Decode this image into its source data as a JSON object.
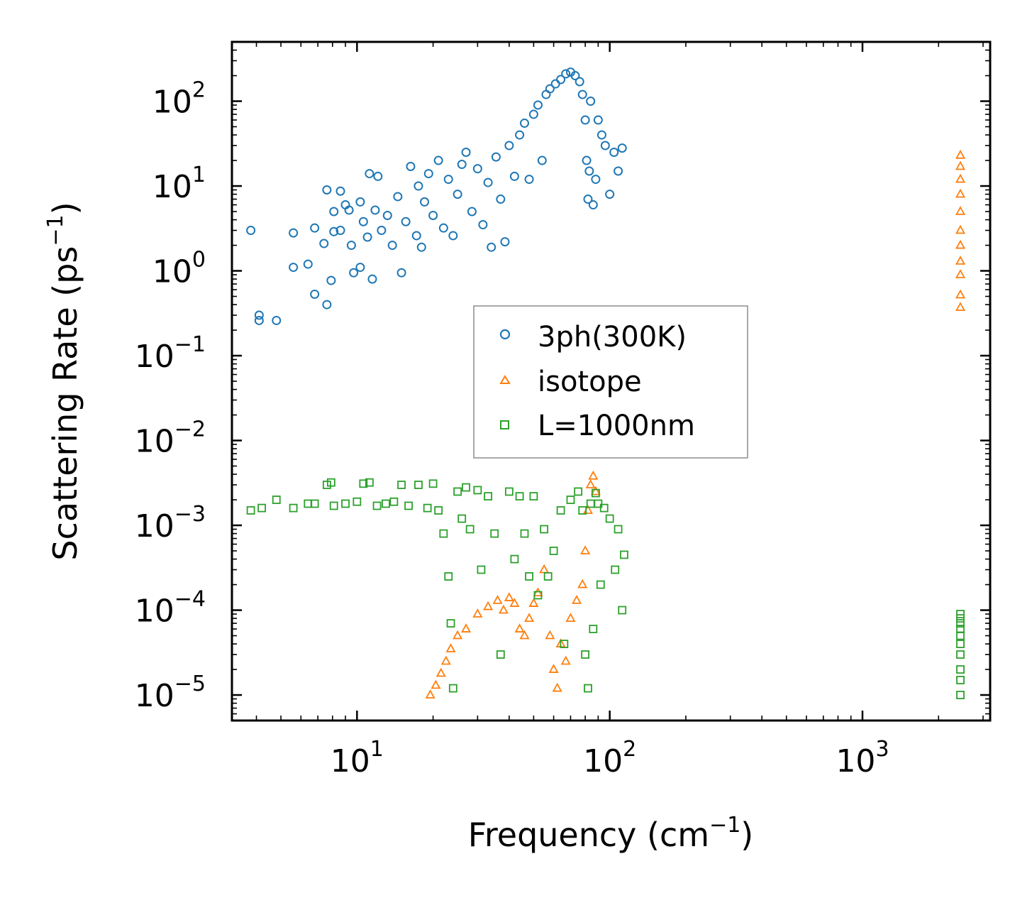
{
  "chart_data": {
    "type": "scatter",
    "title": "",
    "xlabel": "Frequency (cm",
    "xlabel_sup": "−1",
    "xlabel_end": ")",
    "ylabel": "Scattering Rate (ps",
    "ylabel_sup": "−1",
    "ylabel_end": ")",
    "xscale": "log",
    "yscale": "log",
    "xlim": [
      3.2,
      3200
    ],
    "ylim": [
      5e-06,
      500
    ],
    "xticks": [
      {
        "value": 10,
        "base": "10",
        "exp": "1"
      },
      {
        "value": 100,
        "base": "10",
        "exp": "2"
      },
      {
        "value": 1000,
        "base": "10",
        "exp": "3"
      }
    ],
    "yticks": [
      {
        "value": 1e-05,
        "base": "10",
        "exp": "−5"
      },
      {
        "value": 0.0001,
        "base": "10",
        "exp": "−4"
      },
      {
        "value": 0.001,
        "base": "10",
        "exp": "−3"
      },
      {
        "value": 0.01,
        "base": "10",
        "exp": "−2"
      },
      {
        "value": 0.1,
        "base": "10",
        "exp": "−1"
      },
      {
        "value": 1,
        "base": "10",
        "exp": "0"
      },
      {
        "value": 10,
        "base": "10",
        "exp": "1"
      },
      {
        "value": 100,
        "base": "10",
        "exp": "2"
      }
    ],
    "legend_position": "center",
    "series": [
      {
        "name": "3ph(300K)",
        "marker": "circle",
        "color": "#1f77b4",
        "points": [
          [
            3.8,
            3.0
          ],
          [
            4.1,
            0.3
          ],
          [
            4.1,
            0.26
          ],
          [
            4.8,
            0.26
          ],
          [
            5.6,
            2.8
          ],
          [
            5.6,
            1.1
          ],
          [
            6.4,
            1.2
          ],
          [
            6.8,
            3.2
          ],
          [
            6.8,
            0.53
          ],
          [
            7.4,
            2.1
          ],
          [
            7.6,
            0.4
          ],
          [
            7.6,
            9.0
          ],
          [
            7.9,
            0.77
          ],
          [
            8.1,
            2.9
          ],
          [
            8.1,
            5.0
          ],
          [
            8.6,
            3.0
          ],
          [
            8.6,
            8.7
          ],
          [
            9.0,
            6.0
          ],
          [
            9.3,
            5.2
          ],
          [
            9.5,
            2.0
          ],
          [
            9.7,
            0.95
          ],
          [
            10.3,
            1.1
          ],
          [
            10.3,
            6.5
          ],
          [
            10.6,
            3.8
          ],
          [
            11.0,
            2.5
          ],
          [
            11.2,
            14.0
          ],
          [
            11.5,
            0.8
          ],
          [
            11.8,
            5.2
          ],
          [
            12.1,
            13.0
          ],
          [
            12.5,
            3.0
          ],
          [
            13.2,
            4.5
          ],
          [
            13.8,
            2.0
          ],
          [
            14.5,
            7.5
          ],
          [
            15.0,
            0.95
          ],
          [
            15.6,
            3.8
          ],
          [
            16.3,
            17.0
          ],
          [
            17.2,
            2.6
          ],
          [
            17.5,
            10.0
          ],
          [
            18.0,
            1.9
          ],
          [
            18.5,
            6.5
          ],
          [
            19.2,
            14.0
          ],
          [
            20.0,
            4.5
          ],
          [
            21.0,
            20.0
          ],
          [
            22.0,
            3.2
          ],
          [
            23.0,
            12.0
          ],
          [
            24.0,
            2.6
          ],
          [
            25.0,
            8.0
          ],
          [
            26.0,
            18.0
          ],
          [
            27.0,
            25.0
          ],
          [
            28.5,
            5.0
          ],
          [
            30.0,
            16.0
          ],
          [
            31.5,
            3.5
          ],
          [
            33.0,
            11.0
          ],
          [
            34.0,
            1.9
          ],
          [
            35.5,
            22.0
          ],
          [
            37.0,
            7.0
          ],
          [
            38.5,
            2.2
          ],
          [
            40.0,
            30.0
          ],
          [
            42.0,
            13.0
          ],
          [
            44.0,
            40.0
          ],
          [
            46.0,
            55.0
          ],
          [
            48.0,
            12.0
          ],
          [
            50.0,
            70.0
          ],
          [
            52.0,
            90.0
          ],
          [
            54.0,
            20.0
          ],
          [
            56.0,
            120.0
          ],
          [
            58.0,
            140.0
          ],
          [
            61.0,
            160.0
          ],
          [
            64.0,
            180.0
          ],
          [
            67.0,
            210.0
          ],
          [
            70.0,
            220.0
          ],
          [
            73.0,
            200.0
          ],
          [
            76.0,
            170.0
          ],
          [
            78.0,
            120.0
          ],
          [
            80.0,
            60.0
          ],
          [
            81.0,
            20.0
          ],
          [
            82.0,
            7.0
          ],
          [
            83.0,
            15.0
          ],
          [
            84.0,
            100.0
          ],
          [
            86.0,
            6.0
          ],
          [
            88.0,
            12.0
          ],
          [
            90.0,
            60.0
          ],
          [
            93.0,
            40.0
          ],
          [
            96.0,
            30.0
          ],
          [
            100.0,
            8.0
          ],
          [
            104.0,
            25.0
          ],
          [
            108.0,
            15.0
          ],
          [
            112.0,
            28.0
          ]
        ]
      },
      {
        "name": "isotope",
        "marker": "triangle",
        "color": "#ff7f0e",
        "points": [
          [
            19.5,
            1e-05
          ],
          [
            20.5,
            1.3e-05
          ],
          [
            21.5,
            1.8e-05
          ],
          [
            22.5,
            2.5e-05
          ],
          [
            23.5,
            3.5e-05
          ],
          [
            25.0,
            5e-05
          ],
          [
            27.0,
            6e-05
          ],
          [
            30.0,
            9e-05
          ],
          [
            33.0,
            0.00011
          ],
          [
            36.0,
            0.00013
          ],
          [
            38.0,
            0.0001
          ],
          [
            40.0,
            0.00014
          ],
          [
            42.0,
            0.00012
          ],
          [
            44.0,
            6e-05
          ],
          [
            46.0,
            5e-05
          ],
          [
            48.0,
            8e-05
          ],
          [
            50.0,
            0.00012
          ],
          [
            52.0,
            0.00016
          ],
          [
            55.0,
            0.0003
          ],
          [
            58.0,
            5e-05
          ],
          [
            60.0,
            2e-05
          ],
          [
            62.0,
            1.2e-05
          ],
          [
            64.0,
            4e-05
          ],
          [
            67.0,
            2.5e-05
          ],
          [
            70.0,
            8e-05
          ],
          [
            74.0,
            0.00013
          ],
          [
            78.0,
            0.0002
          ],
          [
            80.0,
            0.0005
          ],
          [
            82.0,
            0.0015
          ],
          [
            84.0,
            0.003
          ],
          [
            86.0,
            0.0038
          ],
          [
            88.0,
            0.0025
          ],
          [
            2440,
            0.37
          ],
          [
            2440,
            0.52
          ],
          [
            2440,
            0.9
          ],
          [
            2440,
            1.3
          ],
          [
            2440,
            2.0
          ],
          [
            2440,
            3.0
          ],
          [
            2440,
            5.0
          ],
          [
            2440,
            8.0
          ],
          [
            2440,
            12.0
          ],
          [
            2440,
            17.0
          ],
          [
            2440,
            23.0
          ]
        ]
      },
      {
        "name": "L=1000nm",
        "marker": "square",
        "color": "#2ca02c",
        "points": [
          [
            3.8,
            0.0015
          ],
          [
            4.2,
            0.0016
          ],
          [
            4.8,
            0.002
          ],
          [
            5.6,
            0.0016
          ],
          [
            6.4,
            0.0018
          ],
          [
            6.8,
            0.0018
          ],
          [
            7.6,
            0.003
          ],
          [
            7.9,
            0.0032
          ],
          [
            8.1,
            0.0017
          ],
          [
            9.0,
            0.0018
          ],
          [
            10.0,
            0.0019
          ],
          [
            10.6,
            0.0031
          ],
          [
            11.2,
            0.0032
          ],
          [
            12.0,
            0.0017
          ],
          [
            13.0,
            0.0018
          ],
          [
            14.0,
            0.0019
          ],
          [
            15.0,
            0.003
          ],
          [
            16.0,
            0.0017
          ],
          [
            17.5,
            0.003
          ],
          [
            19.0,
            0.0016
          ],
          [
            20.0,
            0.0031
          ],
          [
            21.0,
            0.0015
          ],
          [
            22.0,
            0.0008
          ],
          [
            23.0,
            0.00025
          ],
          [
            23.5,
            7e-05
          ],
          [
            24.0,
            1.2e-05
          ],
          [
            25.0,
            0.0025
          ],
          [
            26.0,
            0.0012
          ],
          [
            27.0,
            0.0028
          ],
          [
            28.0,
            0.0009
          ],
          [
            30.0,
            0.0026
          ],
          [
            31.0,
            0.0003
          ],
          [
            33.0,
            0.0022
          ],
          [
            35.0,
            0.0008
          ],
          [
            37.0,
            3e-05
          ],
          [
            40.0,
            0.0025
          ],
          [
            42.0,
            0.0004
          ],
          [
            44.0,
            0.0022
          ],
          [
            46.0,
            0.0008
          ],
          [
            48.0,
            0.00025
          ],
          [
            50.0,
            0.0022
          ],
          [
            52.0,
            0.00015
          ],
          [
            55.0,
            0.0009
          ],
          [
            57.0,
            0.00025
          ],
          [
            60.0,
            0.0005
          ],
          [
            64.0,
            0.0015
          ],
          [
            66.0,
            4e-05
          ],
          [
            70.0,
            0.002
          ],
          [
            75.0,
            0.0025
          ],
          [
            78.0,
            0.0015
          ],
          [
            80.0,
            3e-05
          ],
          [
            82.0,
            1.2e-05
          ],
          [
            84.0,
            0.0018
          ],
          [
            86.0,
            6e-05
          ],
          [
            88.0,
            0.0024
          ],
          [
            90.0,
            0.0018
          ],
          [
            92.0,
            0.0002
          ],
          [
            95.0,
            0.0016
          ],
          [
            100.0,
            0.0012
          ],
          [
            105.0,
            0.0003
          ],
          [
            108.0,
            0.0009
          ],
          [
            112.0,
            0.0001
          ],
          [
            114.0,
            0.00045
          ],
          [
            2440,
            1e-05
          ],
          [
            2440,
            1.5e-05
          ],
          [
            2440,
            2e-05
          ],
          [
            2440,
            3e-05
          ],
          [
            2440,
            4e-05
          ],
          [
            2440,
            5e-05
          ],
          [
            2440,
            6e-05
          ],
          [
            2440,
            7e-05
          ],
          [
            2440,
            8e-05
          ],
          [
            2440,
            9e-05
          ]
        ]
      }
    ]
  }
}
